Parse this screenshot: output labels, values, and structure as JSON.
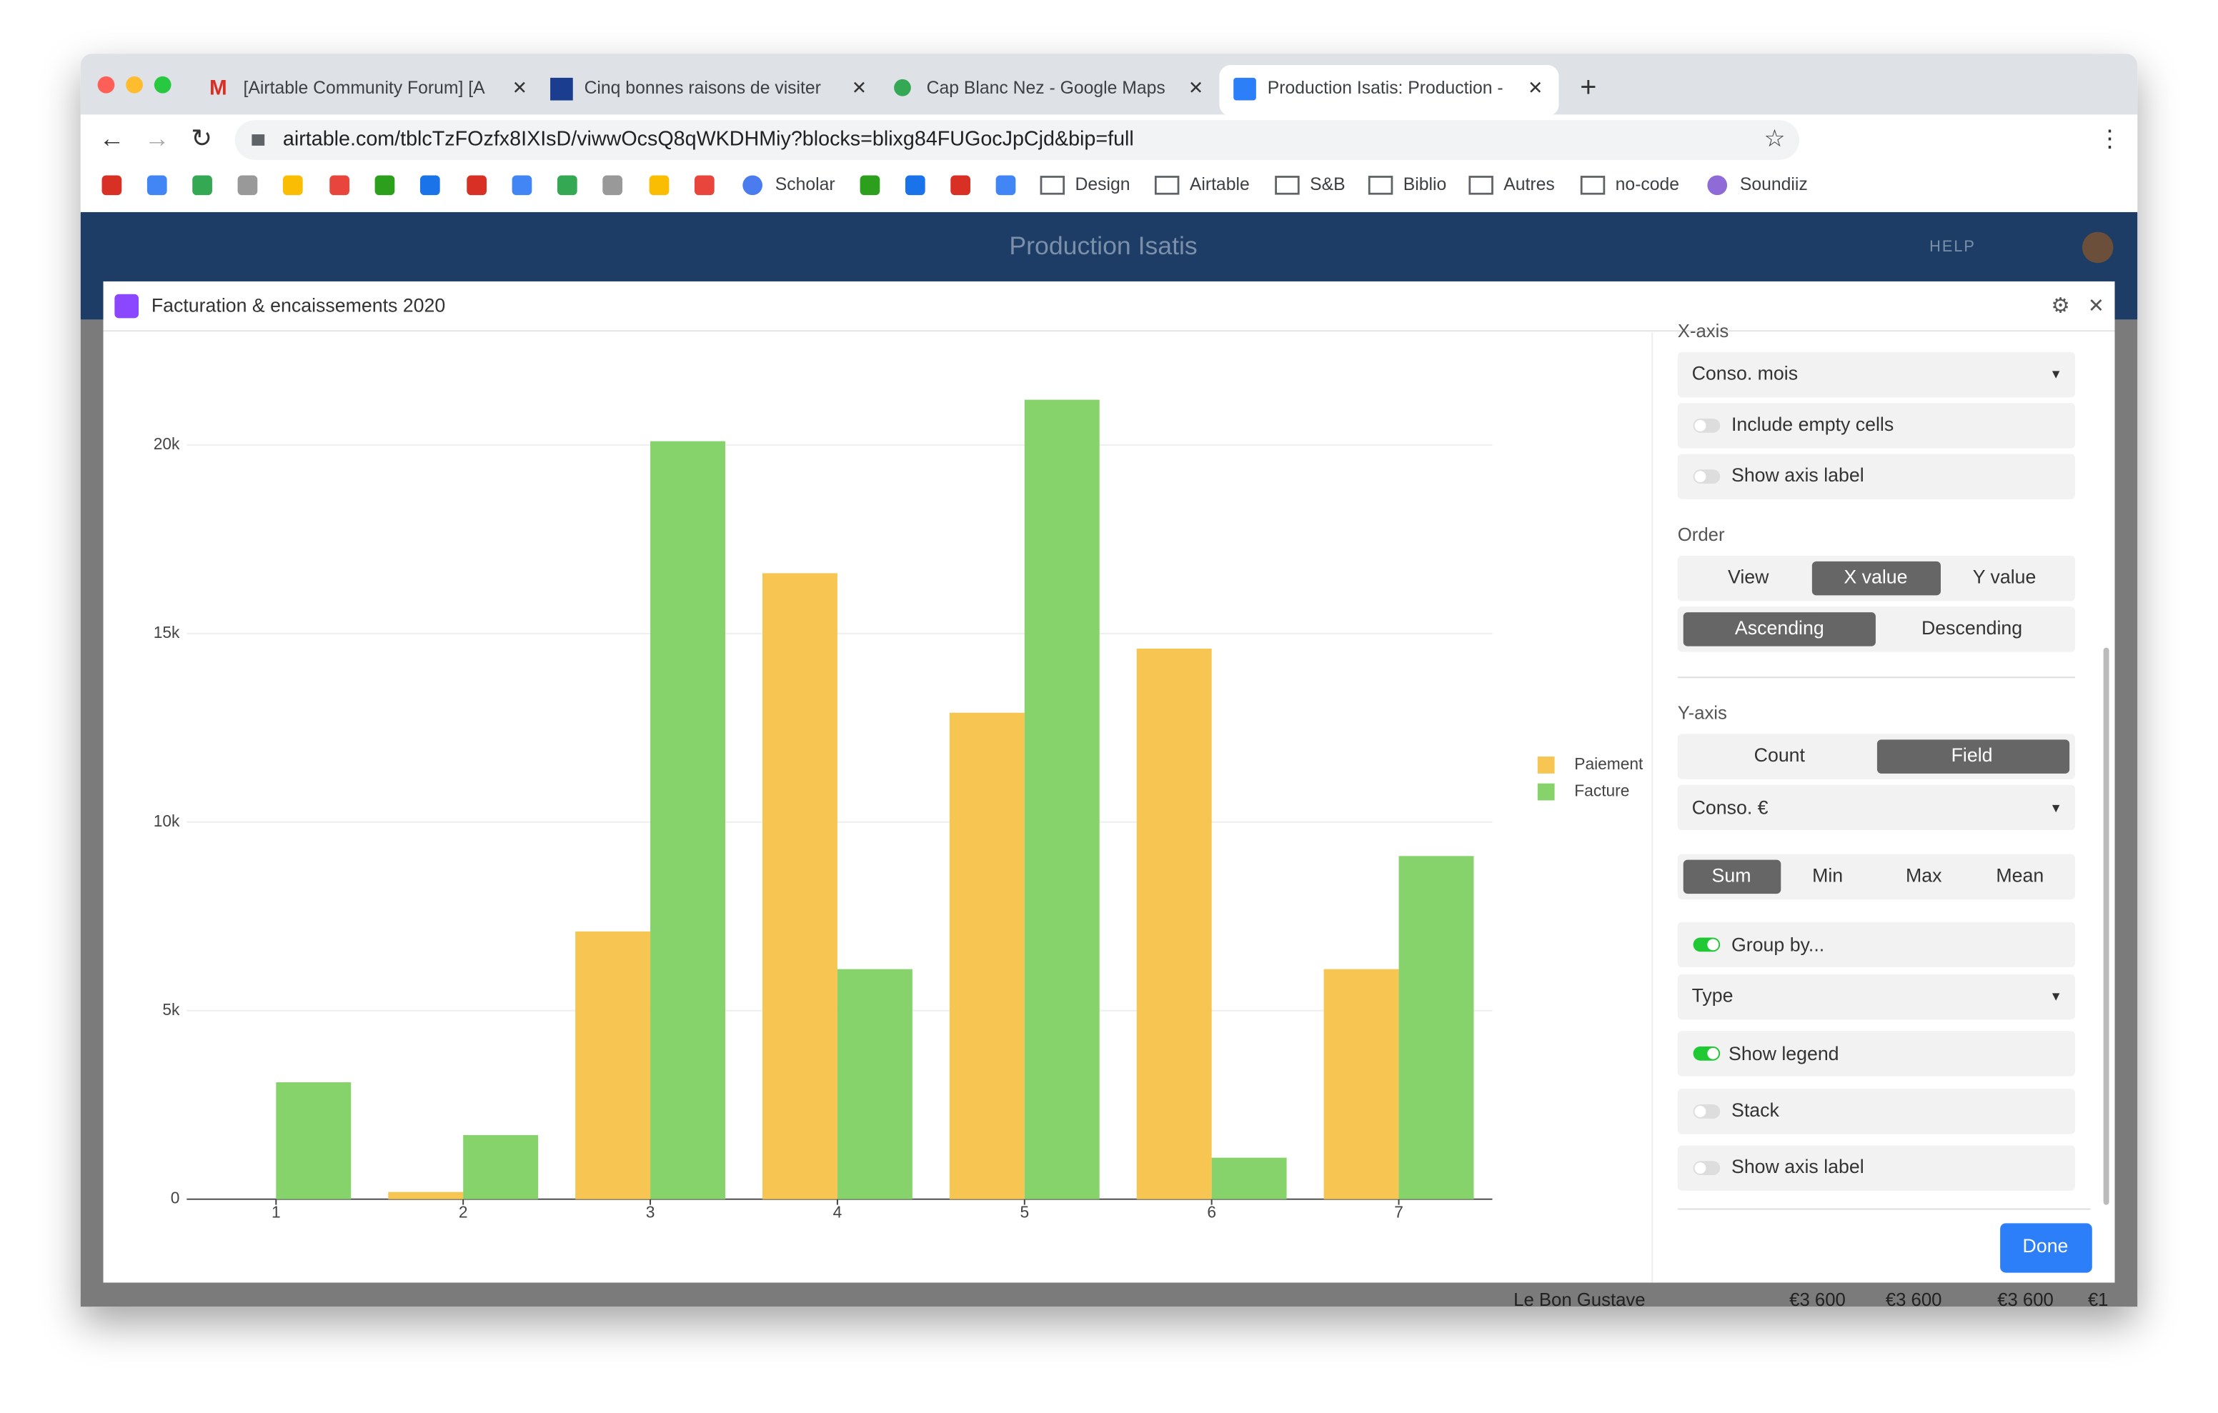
{
  "ui": {
    "tabs": [
      "[Airtable Community Forum] [A",
      "Cinq bonnes raisons de visiter",
      "Cap Blanc Nez - Google Maps",
      "Production Isatis: Production -"
    ],
    "url": "airtable.com/tblcTzFOzfx8IXIsD/viwwOcsQ8qWKDHMiy?blocks=blixg84FUGocJpCjd&bip=full",
    "bookmarks": [
      "Scholar",
      "Design",
      "Airtable",
      "S&B",
      "Biblio",
      "Autres",
      "no-code",
      "Soundiiz"
    ],
    "base_name": "Production Isatis",
    "help": "HELP",
    "block_title": "Facturation & encaissements 2020",
    "settings": {
      "x_axis_heading": "X-axis",
      "x_field": "Conso. mois",
      "include_empty": "Include empty cells",
      "show_axis_label_x": "Show axis label",
      "order_heading": "Order",
      "order_options": [
        "View",
        "X value",
        "Y value"
      ],
      "direction_options": [
        "Ascending",
        "Descending"
      ],
      "y_axis_heading": "Y-axis",
      "y_mode_options": [
        "Count",
        "Field"
      ],
      "y_field": "Conso. €",
      "agg_options": [
        "Sum",
        "Min",
        "Max",
        "Mean"
      ],
      "group_by": "Group by...",
      "group_field": "Type",
      "show_legend": "Show legend",
      "stack": "Stack",
      "show_axis_label_y": "Show axis label",
      "done": "Done"
    },
    "background_row": [
      "Le Bon Gustave",
      "€3 600",
      "€3 600",
      "€3 600",
      "€1"
    ]
  },
  "chart_data": {
    "type": "bar",
    "categories": [
      "1",
      "2",
      "3",
      "4",
      "5",
      "6",
      "7"
    ],
    "series": [
      {
        "name": "Paiement",
        "color": "#f7c552",
        "values": [
          null,
          190,
          7100,
          16600,
          12900,
          14600,
          6100
        ]
      },
      {
        "name": "Facture",
        "color": "#87d36b",
        "values": [
          3100,
          1700,
          20100,
          6100,
          21200,
          1100,
          9100
        ]
      }
    ],
    "ylim": [
      0,
      22800
    ],
    "yticks": [
      0,
      {
        "value": 5000,
        "label": "5k"
      },
      {
        "value": 10000,
        "label": "10k"
      },
      {
        "value": 15000,
        "label": "15k"
      },
      {
        "value": 20000,
        "label": "20k"
      }
    ],
    "grid": true,
    "legend": "right"
  }
}
